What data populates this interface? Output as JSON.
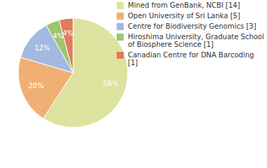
{
  "chart_data": {
    "type": "pie",
    "categories": [
      "Mined from GenBank, NCBI [14]",
      "Open University of Sri Lanka [5]",
      "Centre for Biodiversity Genomics [3]",
      "Hiroshima University, Graduate School of Biosphere Science [1]",
      "Canadian Centre for DNA Barcoding [1]"
    ],
    "values": [
      58,
      20,
      12,
      4,
      4
    ],
    "value_labels": [
      "58%",
      "20%",
      "12%",
      "4%",
      "4%"
    ],
    "colors": [
      "#dde39e",
      "#f0b073",
      "#a4b9e0",
      "#9ec66d",
      "#e07c5c"
    ],
    "data_labels": true,
    "legend": "right"
  }
}
